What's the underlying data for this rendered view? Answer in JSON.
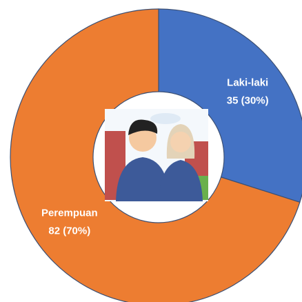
{
  "chart_data": {
    "type": "donut",
    "categories": [
      "Laki-laki",
      "Perempuan"
    ],
    "values": [
      35,
      82
    ],
    "value_labels": [
      "35 (30%)",
      "82 (70%)"
    ],
    "colors": [
      "#4472c4",
      "#ed7d31"
    ]
  }
}
